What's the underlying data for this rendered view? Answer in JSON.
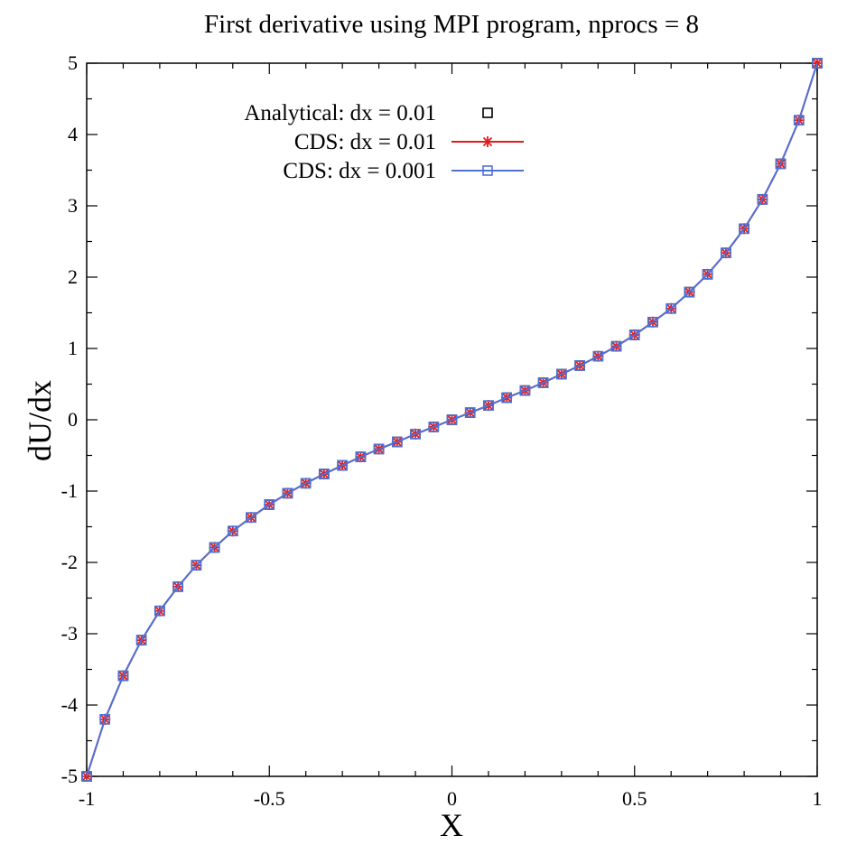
{
  "chart_data": {
    "type": "line",
    "title": "First derivative using MPI program, nprocs = 8",
    "xlabel": "X",
    "ylabel": "dU/dx",
    "xlim": [
      -1,
      1
    ],
    "ylim": [
      -5,
      5
    ],
    "x_ticks": [
      -1,
      -0.5,
      0,
      0.5,
      1
    ],
    "x_tick_labels": [
      "-1",
      "-0.5",
      "0",
      "0.5",
      "1"
    ],
    "y_ticks": [
      -5,
      -4,
      -3,
      -2,
      -1,
      0,
      1,
      2,
      3,
      4,
      5
    ],
    "y_tick_labels": [
      "-5",
      "-4",
      "-3",
      "-2",
      "-1",
      "0",
      "1",
      "2",
      "3",
      "4",
      "5"
    ],
    "grid": false,
    "legend_position": "top-left",
    "x": [
      -1,
      -0.95,
      -0.9,
      -0.85,
      -0.8,
      -0.75,
      -0.7,
      -0.65,
      -0.6,
      -0.55,
      -0.5,
      -0.45,
      -0.4,
      -0.35,
      -0.3,
      -0.25,
      -0.2,
      -0.15,
      -0.1,
      -0.05,
      0,
      0.05,
      0.1,
      0.15,
      0.2,
      0.25,
      0.3,
      0.35,
      0.4,
      0.45,
      0.5,
      0.55,
      0.6,
      0.65,
      0.7,
      0.75,
      0.8,
      0.85,
      0.9,
      0.95,
      1
    ],
    "series": [
      {
        "name": "Analytical: dx = 0.01",
        "style": "markers",
        "marker": "open-square",
        "color": "#000000",
        "values": [
          -5,
          -4.2,
          -3.59,
          -3.09,
          -2.68,
          -2.34,
          -2.04,
          -1.79,
          -1.56,
          -1.37,
          -1.19,
          -1.03,
          -0.89,
          -0.76,
          -0.64,
          -0.52,
          -0.41,
          -0.31,
          -0.2,
          -0.1,
          0,
          0.1,
          0.2,
          0.31,
          0.41,
          0.52,
          0.64,
          0.76,
          0.89,
          1.03,
          1.19,
          1.37,
          1.56,
          1.79,
          2.04,
          2.34,
          2.68,
          3.09,
          3.59,
          4.2,
          5
        ]
      },
      {
        "name": "CDS: dx = 0.01",
        "style": "line+markers",
        "marker": "asterisk",
        "color": "#e41a1c",
        "values": [
          -5,
          -4.2,
          -3.59,
          -3.09,
          -2.68,
          -2.34,
          -2.04,
          -1.79,
          -1.56,
          -1.37,
          -1.19,
          -1.03,
          -0.89,
          -0.76,
          -0.64,
          -0.52,
          -0.41,
          -0.31,
          -0.2,
          -0.1,
          0,
          0.1,
          0.2,
          0.31,
          0.41,
          0.52,
          0.64,
          0.76,
          0.89,
          1.03,
          1.19,
          1.37,
          1.56,
          1.79,
          2.04,
          2.34,
          2.68,
          3.09,
          3.59,
          4.2,
          5
        ]
      },
      {
        "name": "CDS: dx = 0.001",
        "style": "line+markers",
        "marker": "open-square",
        "color": "#4f72d6",
        "values": [
          -5,
          -4.2,
          -3.59,
          -3.09,
          -2.68,
          -2.34,
          -2.04,
          -1.79,
          -1.56,
          -1.37,
          -1.19,
          -1.03,
          -0.89,
          -0.76,
          -0.64,
          -0.52,
          -0.41,
          -0.31,
          -0.2,
          -0.1,
          0,
          0.1,
          0.2,
          0.31,
          0.41,
          0.52,
          0.64,
          0.76,
          0.89,
          1.03,
          1.19,
          1.37,
          1.56,
          1.79,
          2.04,
          2.34,
          2.68,
          3.09,
          3.59,
          4.2,
          5
        ]
      }
    ]
  }
}
